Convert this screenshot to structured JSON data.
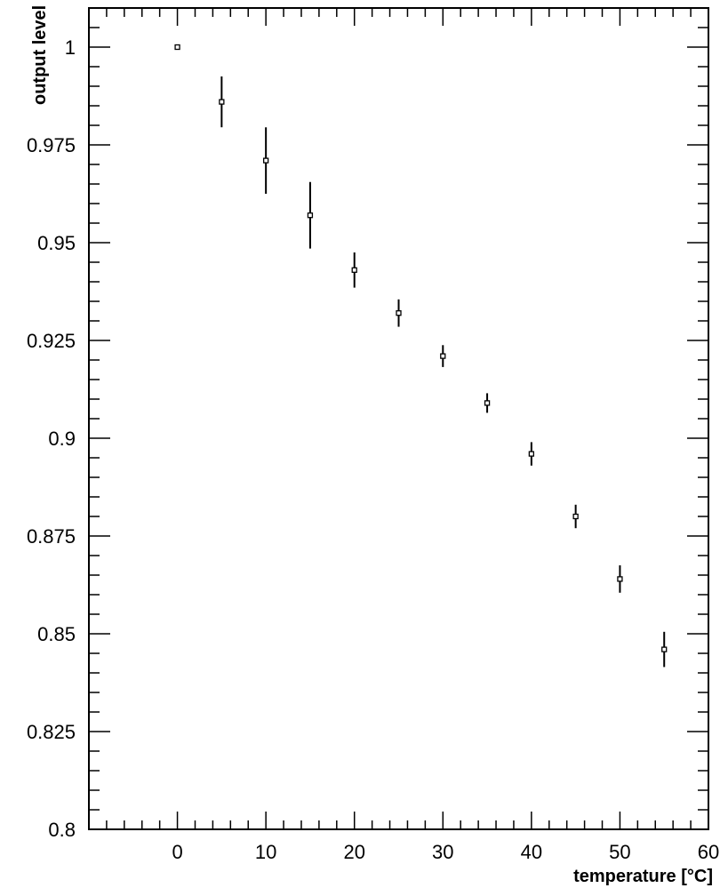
{
  "chart_data": {
    "type": "scatter",
    "title": "",
    "xlabel": "temperature [°C]",
    "ylabel": "output level",
    "xlim": [
      -10,
      60
    ],
    "ylim": [
      0.8,
      1.01
    ],
    "x_ticks": [
      0,
      10,
      20,
      30,
      40,
      50,
      60
    ],
    "y_ticks": [
      0.8,
      0.825,
      0.85,
      0.875,
      0.9,
      0.925,
      0.95,
      0.975,
      1
    ],
    "y_tick_labels": [
      "0.8",
      "0.825",
      "0.85",
      "0.875",
      "0.9",
      "0.925",
      "0.95",
      "0.975",
      "1"
    ],
    "x_minor_step": 2,
    "y_minor_step": 0.005,
    "grid": false,
    "series": [
      {
        "marker": "open-square",
        "points": [
          {
            "x": 0,
            "y": 1.0,
            "err": 0.0
          },
          {
            "x": 5,
            "y": 0.986,
            "err": 0.0065
          },
          {
            "x": 10,
            "y": 0.971,
            "err": 0.0085
          },
          {
            "x": 15,
            "y": 0.957,
            "err": 0.0085
          },
          {
            "x": 20,
            "y": 0.943,
            "err": 0.0045
          },
          {
            "x": 25,
            "y": 0.932,
            "err": 0.0035
          },
          {
            "x": 30,
            "y": 0.921,
            "err": 0.0028
          },
          {
            "x": 35,
            "y": 0.909,
            "err": 0.0025
          },
          {
            "x": 40,
            "y": 0.896,
            "err": 0.003
          },
          {
            "x": 45,
            "y": 0.88,
            "err": 0.003
          },
          {
            "x": 50,
            "y": 0.864,
            "err": 0.0035
          },
          {
            "x": 55,
            "y": 0.846,
            "err": 0.0045
          }
        ]
      }
    ]
  }
}
